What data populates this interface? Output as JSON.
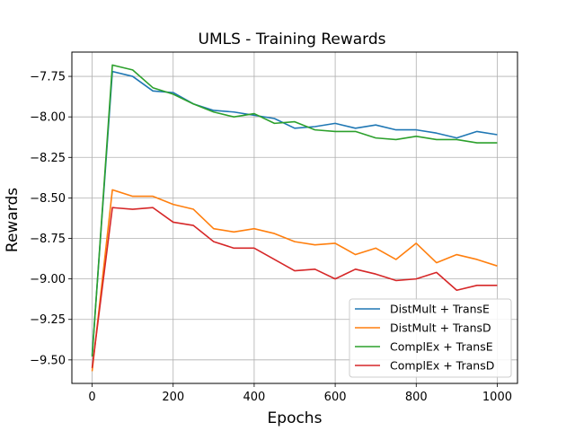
{
  "chart_data": {
    "type": "line",
    "title": "UMLS - Training Rewards",
    "xlabel": "Epochs",
    "ylabel": "Rewards",
    "xlim": [
      -50,
      1050
    ],
    "ylim": [
      -9.645,
      -7.6
    ],
    "xticks": [
      0,
      200,
      400,
      600,
      800,
      1000
    ],
    "xtick_labels": [
      "0",
      "200",
      "400",
      "600",
      "800",
      "1000"
    ],
    "yticks": [
      -9.5,
      -9.25,
      -9.0,
      -8.75,
      -8.5,
      -8.25,
      -8.0,
      -7.75
    ],
    "ytick_labels": [
      "−9.50",
      "−9.25",
      "−9.00",
      "−8.75",
      "−8.50",
      "−8.25",
      "−8.00",
      "−7.75"
    ],
    "grid": true,
    "legend_position": "lower-right",
    "x": [
      0,
      50,
      100,
      150,
      200,
      250,
      300,
      350,
      400,
      450,
      500,
      550,
      600,
      650,
      700,
      750,
      800,
      850,
      900,
      950,
      1000
    ],
    "series": [
      {
        "name": "DistMult + TransE",
        "color": "#1f77b4",
        "values": [
          -9.47,
          -7.72,
          -7.75,
          -7.84,
          -7.85,
          -7.92,
          -7.96,
          -7.97,
          -7.99,
          -8.01,
          -8.07,
          -8.06,
          -8.04,
          -8.07,
          -8.05,
          -8.08,
          -8.08,
          -8.1,
          -8.13,
          -8.09,
          -8.11
        ]
      },
      {
        "name": "DistMult + TransD",
        "color": "#ff7f0e",
        "values": [
          -9.57,
          -8.45,
          -8.49,
          -8.49,
          -8.54,
          -8.57,
          -8.69,
          -8.71,
          -8.69,
          -8.72,
          -8.77,
          -8.79,
          -8.78,
          -8.85,
          -8.81,
          -8.88,
          -8.78,
          -8.9,
          -8.85,
          -8.88,
          -8.92
        ]
      },
      {
        "name": "ComplEx + TransE",
        "color": "#2ca02c",
        "values": [
          -9.48,
          -7.68,
          -7.71,
          -7.82,
          -7.86,
          -7.92,
          -7.97,
          -8.0,
          -7.98,
          -8.04,
          -8.03,
          -8.08,
          -8.09,
          -8.09,
          -8.13,
          -8.14,
          -8.12,
          -8.14,
          -8.14,
          -8.16,
          -8.16
        ]
      },
      {
        "name": "ComplEx + TransD",
        "color": "#d62728",
        "values": [
          -9.55,
          -8.56,
          -8.57,
          -8.56,
          -8.65,
          -8.67,
          -8.77,
          -8.81,
          -8.81,
          -8.88,
          -8.95,
          -8.94,
          -9.0,
          -8.94,
          -8.97,
          -9.01,
          -9.0,
          -8.96,
          -9.07,
          -9.04,
          -9.04
        ]
      }
    ]
  }
}
